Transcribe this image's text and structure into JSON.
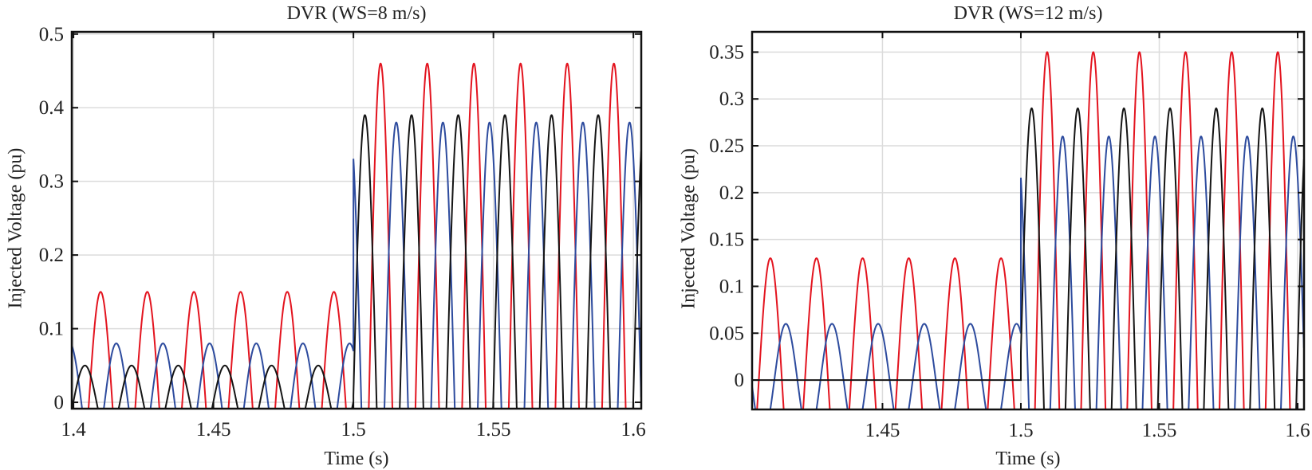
{
  "chart_data": [
    {
      "type": "line",
      "title": "DVR (WS=8 m/s)",
      "xlabel": "Time (s)",
      "ylabel": "Injected Voltage (pu)",
      "xlim": [
        1.3994,
        1.6028
      ],
      "ylim": [
        -0.0086,
        0.503
      ],
      "xticks": [
        1.4,
        1.45,
        1.5,
        1.55,
        1.6
      ],
      "xtick_labels": [
        "1.4",
        "1.45",
        "1.5",
        "1.55",
        "1.6"
      ],
      "yticks": [
        0,
        0.1,
        0.2,
        0.3,
        0.4,
        0.5
      ],
      "ytick_labels": [
        "0",
        "0.1",
        "0.2",
        "0.3",
        "0.4",
        "0.5"
      ],
      "grid": true,
      "frequency_hz": 60,
      "step_time": 1.5,
      "series": [
        {
          "color": "#e3141f",
          "peak_time": 1.4097,
          "amplitude_before": 0.15,
          "amplitude_after": 0.46
        },
        {
          "color": "#2d4b9e",
          "peak_time": 1.4153,
          "amplitude_before": 0.08,
          "amplitude_after": 0.38
        },
        {
          "color": "#151515",
          "peak_time": 1.4041,
          "amplitude_before": 0.05,
          "amplitude_after": 0.39
        }
      ]
    },
    {
      "type": "line",
      "title": "DVR (WS=12 m/s)",
      "xlabel": "Time (s)",
      "ylabel": "Injected Voltage (pu)",
      "xlim": [
        1.4029,
        1.6023
      ],
      "ylim": [
        -0.0314,
        0.3716
      ],
      "xticks": [
        1.45,
        1.5,
        1.55,
        1.6
      ],
      "xtick_labels": [
        "1.45",
        "1.5",
        "1.55",
        "1.6"
      ],
      "yticks": [
        0,
        0.05,
        0.1,
        0.15,
        0.2,
        0.25,
        0.3,
        0.35
      ],
      "ytick_labels": [
        "0",
        "0.05",
        "0.1",
        "0.15",
        "0.2",
        "0.25",
        "0.3",
        "0.35"
      ],
      "grid": true,
      "frequency_hz": 60,
      "step_time": 1.5,
      "series": [
        {
          "color": "#e3141f",
          "peak_time": 1.4095,
          "amplitude_before": 0.13,
          "amplitude_after": 0.35
        },
        {
          "color": "#2d4b9e",
          "peak_time": 1.4151,
          "amplitude_before": 0.06,
          "amplitude_after": 0.26
        },
        {
          "color": "#151515",
          "peak_time": 1.4039,
          "amplitude_before": 0.0,
          "amplitude_after": 0.29
        }
      ]
    }
  ]
}
